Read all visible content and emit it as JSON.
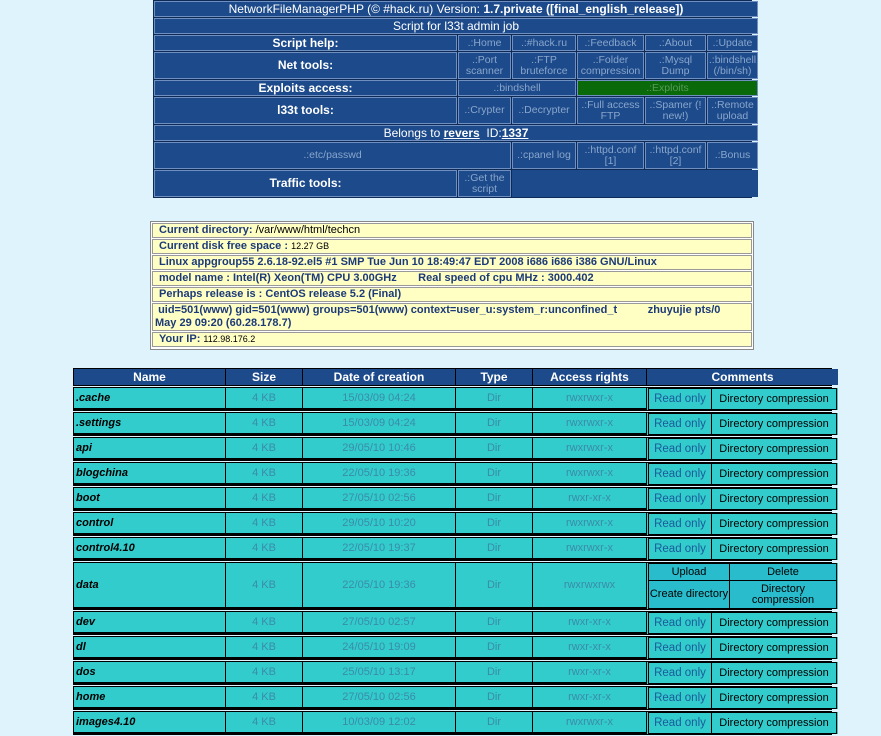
{
  "header": {
    "app_name": "NetworkFileManagerPHP (© #hack.ru)",
    "version_label": "Version:",
    "version": "1.7.private ([final_english_release])",
    "subtitle": "Script for l33t admin job"
  },
  "script_help": {
    "label": "Script help:",
    "links": [
      ".:Home",
      ".:#hack.ru",
      ".:Feedback",
      ".:About",
      ".:Update"
    ]
  },
  "net_tools": {
    "label": "Net tools:",
    "links": [
      ".:Port scanner",
      ".:FTP bruteforce",
      ".:Folder compression",
      ".:Mysql Dump",
      ".:bindshell (/bin/sh)"
    ]
  },
  "exploits": {
    "label": "Exploits access:",
    "links": [
      ".:bindshell",
      ".:Exploits"
    ]
  },
  "l33t_tools": {
    "label": "l33t tools:",
    "links": [
      ".:Crypter",
      ".:Decrypter",
      ".:Full access FTP",
      ".:Spamer (! new!)",
      ".:Remote upload"
    ]
  },
  "belongs": {
    "prefix": "Belongs to",
    "user": "revers",
    "id_label": "ID:",
    "id": "1337"
  },
  "misc": {
    "links": [
      ".:etc/passwd",
      ".:cpanel log",
      ".:httpd.conf [1]",
      ".:httpd.conf [2]",
      ".:Bonus"
    ]
  },
  "traffic_tools": {
    "label": "Traffic tools:",
    "links": [
      ".:Get the script"
    ]
  },
  "colors": {
    "nav_bg": "#1c4a8a",
    "exploits_bg": "#0a6a0a",
    "info_bg": "#ffffc4",
    "row_bg": "#33cccc",
    "page_bg": "#dff3fd"
  },
  "info": {
    "cur_dir_label": "Current directory:",
    "cur_dir": "/var/www/html/techcn",
    "disk_label": "Current disk free space",
    "disk": "12.27 GB",
    "uname": "Linux appgroup55 2.6.18-92.el5 #1 SMP Tue Jun 10 18:49:47 EDT 2008 i686 i686 i386 GNU/Linux",
    "cpu": "model name : Intel(R) Xeon(TM) CPU 3.00GHz",
    "cpu_speed": "Real speed of cpu MHz : 3000.402",
    "release": "Perhaps release is :  CentOS release 5.2 (Final)",
    "id": "uid=501(www) gid=501(www) groups=501(www) context=user_u:system_r:unconfined_t",
    "who": "zhuyujie pts/0",
    "who2": "May 29 09:20 (60.28.178.7)",
    "ip_label": "Your IP:",
    "ip": "112.98.176.2"
  },
  "table": {
    "columns": [
      "Name",
      "Size",
      "Date of creation",
      "Type",
      "Access rights",
      "Comments"
    ],
    "read_only": "Read only",
    "dir_compression": "Directory compression",
    "data_actions": [
      "Upload",
      "Delete",
      "Create directory",
      "Directory compression"
    ],
    "rows": [
      {
        "name": ".cache",
        "size": "4 KB",
        "date": "15/03/09 04:24",
        "type": "Dir",
        "rights": "rwxrwxr-x"
      },
      {
        "name": ".settings",
        "size": "4 KB",
        "date": "15/03/09 04:24",
        "type": "Dir",
        "rights": "rwxrwxr-x"
      },
      {
        "name": "api",
        "size": "4 KB",
        "date": "29/05/10 10:46",
        "type": "Dir",
        "rights": "rwxrwxr-x"
      },
      {
        "name": "blogchina",
        "size": "4 KB",
        "date": "22/05/10 19:36",
        "type": "Dir",
        "rights": "rwxrwxr-x"
      },
      {
        "name": "boot",
        "size": "4 KB",
        "date": "27/05/10 02:56",
        "type": "Dir",
        "rights": "rwxr-xr-x"
      },
      {
        "name": "control",
        "size": "4 KB",
        "date": "29/05/10 10:20",
        "type": "Dir",
        "rights": "rwxrwxr-x"
      },
      {
        "name": "control4.10",
        "size": "4 KB",
        "date": "22/05/10 19:37",
        "type": "Dir",
        "rights": "rwxrwxr-x"
      },
      {
        "name": "data",
        "size": "4 KB",
        "date": "22/05/10 19:36",
        "type": "Dir",
        "rights": "rwxrwxrwx",
        "writable": true
      },
      {
        "name": "dev",
        "size": "4 KB",
        "date": "27/05/10 02:57",
        "type": "Dir",
        "rights": "rwxr-xr-x"
      },
      {
        "name": "dl",
        "size": "4 KB",
        "date": "24/05/10 19:09",
        "type": "Dir",
        "rights": "rwxr-xr-x"
      },
      {
        "name": "dos",
        "size": "4 KB",
        "date": "25/05/10 13:17",
        "type": "Dir",
        "rights": "rwxr-xr-x"
      },
      {
        "name": "home",
        "size": "4 KB",
        "date": "27/05/10 02:56",
        "type": "Dir",
        "rights": "rwxr-xr-x"
      },
      {
        "name": "images4.10",
        "size": "4 KB",
        "date": "10/03/09 12:02",
        "type": "Dir",
        "rights": "rwxrwxr-x"
      }
    ]
  }
}
